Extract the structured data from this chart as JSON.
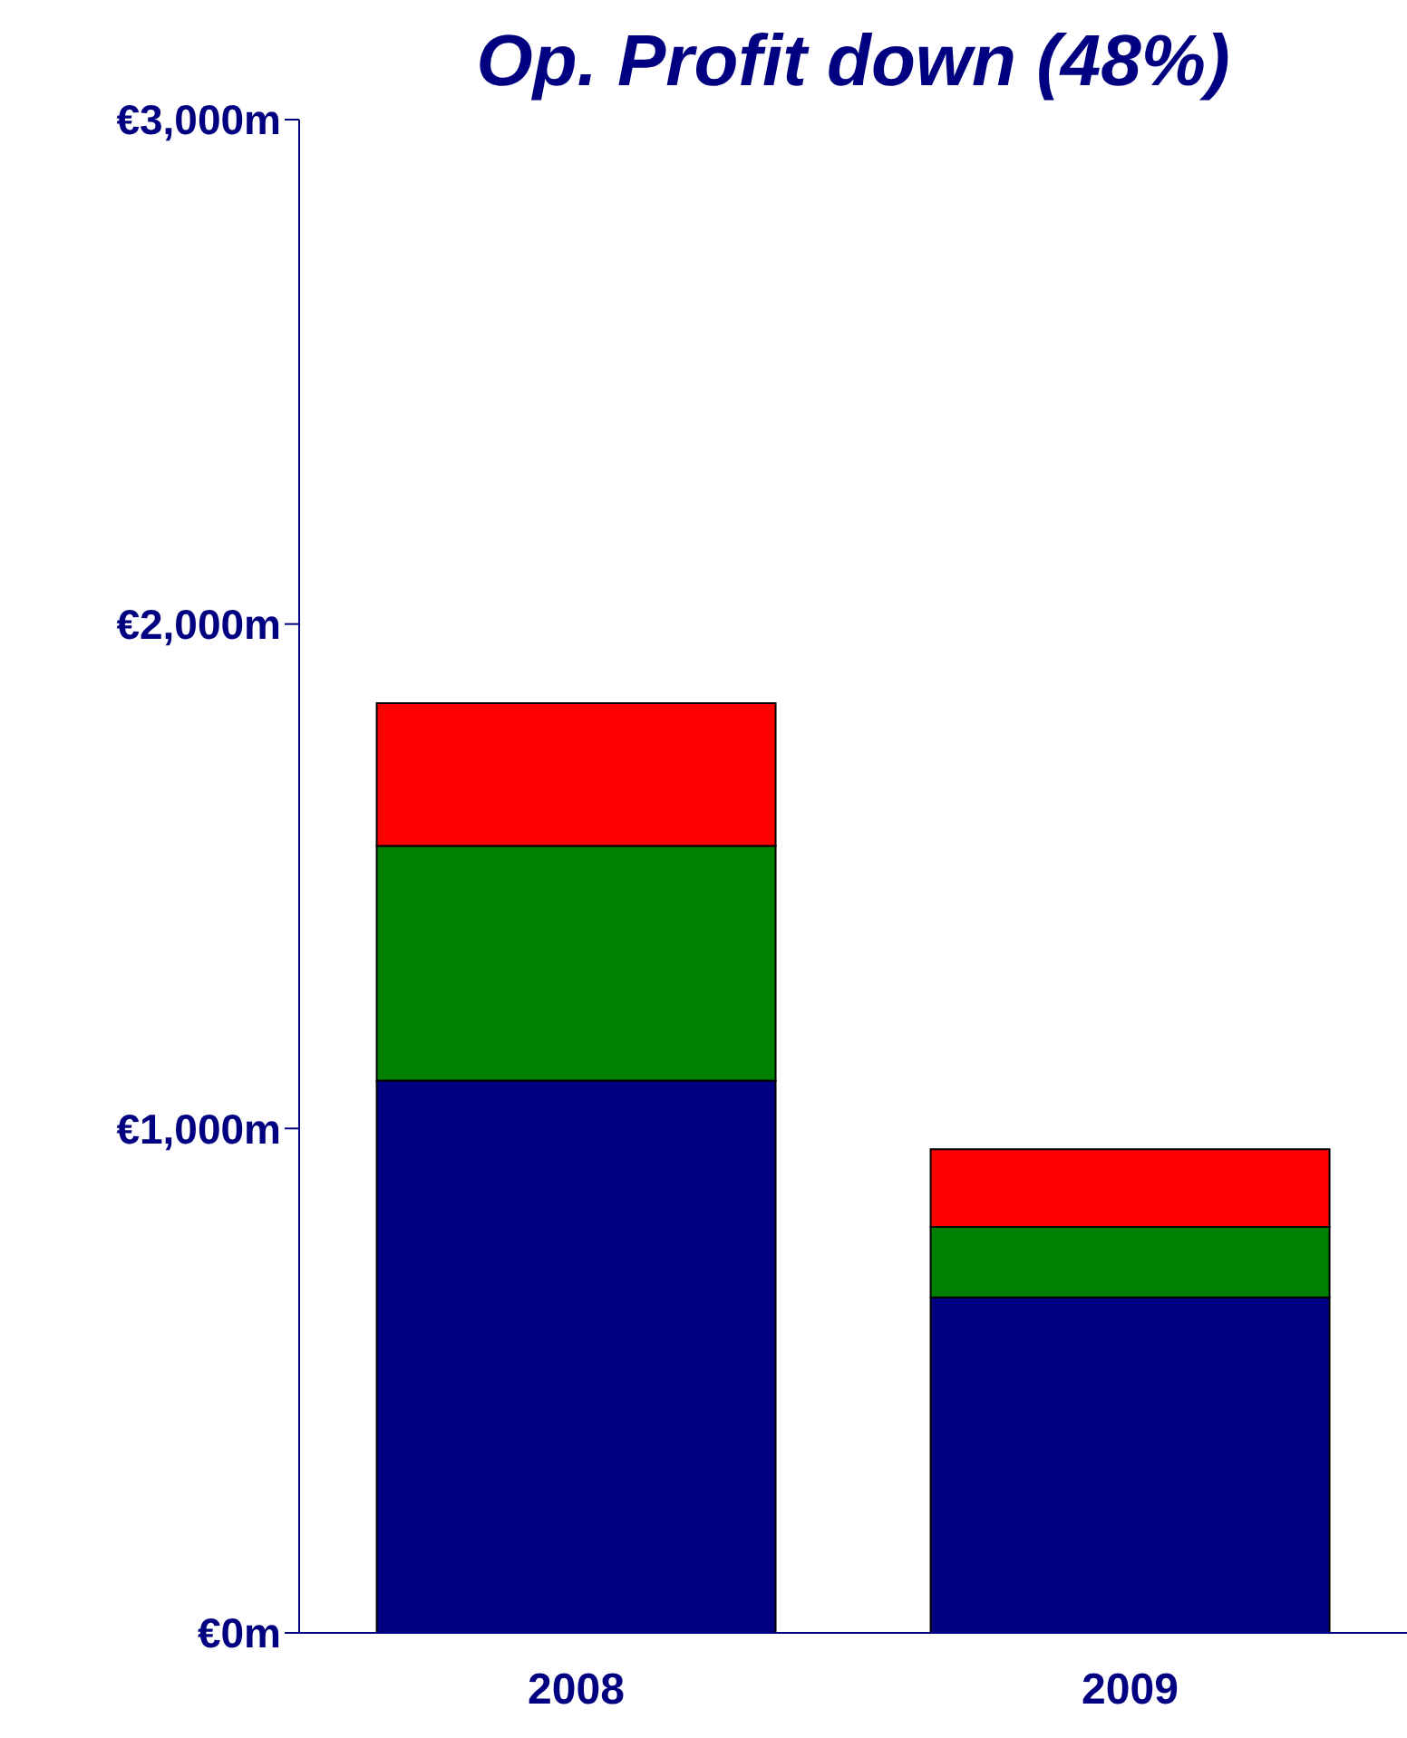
{
  "chart_data": {
    "type": "bar",
    "title": "Op. Profit down (48%)",
    "categories": [
      "2008",
      "2009"
    ],
    "stacked": true,
    "series": [
      {
        "color": "#000080",
        "values": [
          1095,
          665
        ]
      },
      {
        "color": "#008000",
        "values": [
          465,
          140
        ]
      },
      {
        "color": "#ff0000",
        "values": [
          283,
          154
        ]
      }
    ],
    "ylim": [
      0,
      3000
    ],
    "yticks": [
      {
        "value": 0,
        "label": "€0m"
      },
      {
        "value": 1000,
        "label": "€1,000m"
      },
      {
        "value": 2000,
        "label": "€2,000m"
      },
      {
        "value": 3000,
        "label": "€3,000m"
      }
    ],
    "grid": false,
    "legend": false
  }
}
